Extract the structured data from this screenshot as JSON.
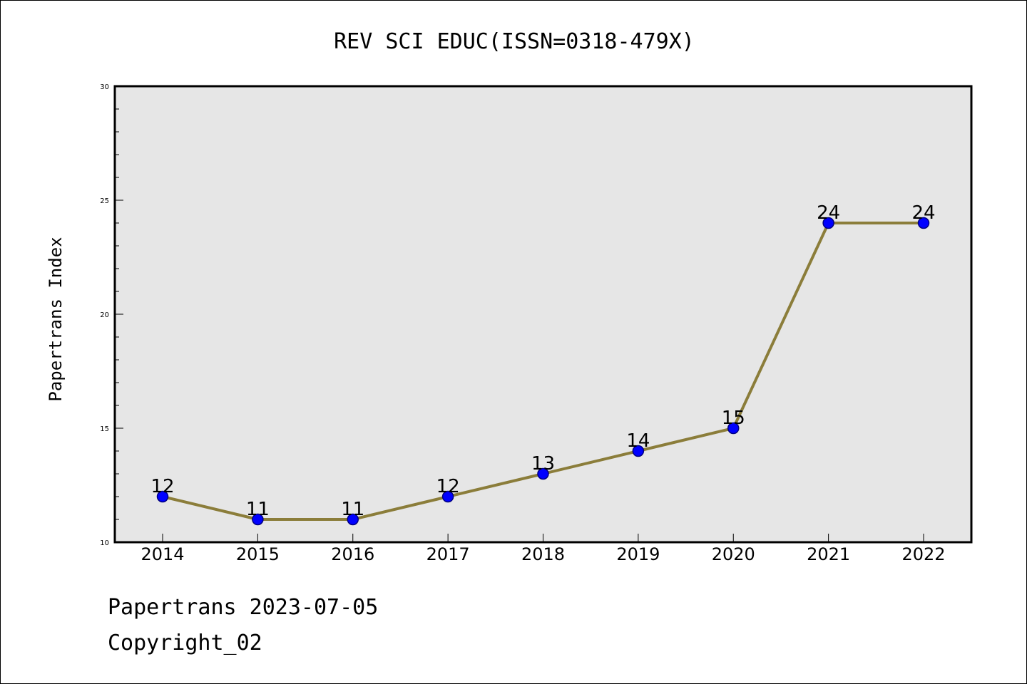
{
  "chart_data": {
    "type": "line",
    "title": "REV SCI EDUC(ISSN=0318-479X)",
    "xlabel": "",
    "ylabel": "Papertrans Index",
    "categories": [
      "2014",
      "2015",
      "2016",
      "2017",
      "2018",
      "2019",
      "2020",
      "2021",
      "2022"
    ],
    "values": [
      12,
      11,
      11,
      12,
      13,
      14,
      15,
      24,
      24
    ],
    "ylim": [
      10,
      30
    ],
    "yticks": [
      10,
      15,
      20,
      25,
      30
    ],
    "grid": false,
    "legend": "none",
    "colors": {
      "line": "#8b7d3a",
      "marker_fill": "#0000ff",
      "marker_edge": "#000080",
      "plot_bg": "#e6e6e6"
    }
  },
  "footer": {
    "date_line": "Papertrans 2023-07-05",
    "copyright_line": "Copyright_02"
  }
}
